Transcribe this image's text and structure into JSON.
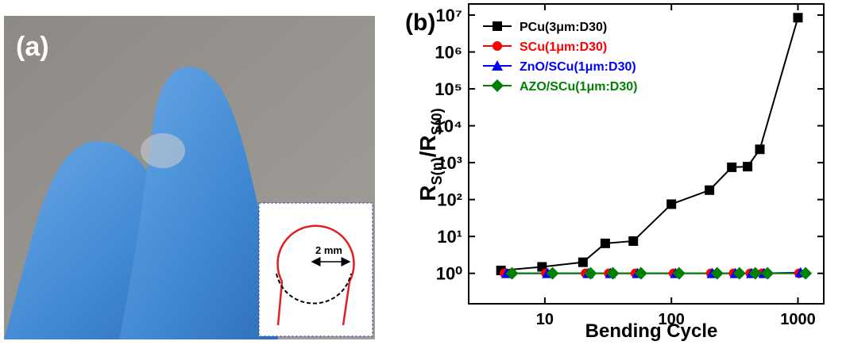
{
  "photo": {
    "label": "(a)",
    "inset_label": "2 mm"
  },
  "chart_data": {
    "type": "line",
    "title": "(b)",
    "xlabel": "Bending Cycle",
    "ylabel": [
      "R",
      "S(n)",
      "/R",
      "S(0)"
    ],
    "xscale": "log",
    "yscale": "log",
    "xlim": [
      2.5,
      1600
    ],
    "ylim": [
      0.15,
      20000000
    ],
    "xticks": [
      10,
      100,
      1000
    ],
    "yticks": [
      {
        "value": 1,
        "label": "10⁰"
      },
      {
        "value": 10,
        "label": "10¹"
      },
      {
        "value": 100,
        "label": "10²"
      },
      {
        "value": 1000,
        "label": "10³"
      },
      {
        "value": 10000,
        "label": "10⁴"
      },
      {
        "value": 100000,
        "label": "10⁵"
      },
      {
        "value": 1000000,
        "label": "10⁶"
      },
      {
        "value": 10000000,
        "label": "10⁷"
      }
    ],
    "legend": "upper left",
    "series": [
      {
        "name": "PCu(3μm:D30)",
        "color": "#000000",
        "marker": "square",
        "x": [
          4.5,
          9.5,
          20,
          30,
          50,
          100,
          200,
          300,
          400,
          500,
          1000
        ],
        "values": [
          1.2,
          1.5,
          2,
          6.5,
          7.5,
          75,
          180,
          750,
          780,
          2300,
          8500000
        ]
      },
      {
        "name": "SCu(1μm:D30)",
        "color": "#ff0000",
        "marker": "circle",
        "x": [
          4.8,
          10.2,
          21,
          32,
          52,
          104,
          205,
          310,
          420,
          520,
          1020
        ],
        "values": [
          1,
          1,
          1,
          1,
          1,
          1,
          1,
          1,
          1,
          1,
          1
        ]
      },
      {
        "name": "ZnO/SCu(1μm:D30)",
        "color": "#0000ff",
        "marker": "triangle",
        "x": [
          5,
          10.5,
          22,
          33,
          54,
          108,
          210,
          320,
          430,
          540,
          1050
        ],
        "values": [
          1,
          1,
          1,
          1,
          1,
          1,
          1,
          1,
          1,
          1,
          1.05
        ]
      },
      {
        "name": "AZO/SCu(1μm:D30)",
        "color": "#008000",
        "marker": "diamond",
        "x": [
          5.5,
          11.5,
          23,
          34.5,
          57.5,
          115,
          230,
          345,
          460,
          575,
          1150
        ],
        "values": [
          1,
          1,
          1,
          1,
          1,
          1,
          1,
          1,
          1,
          1,
          1
        ]
      }
    ]
  }
}
